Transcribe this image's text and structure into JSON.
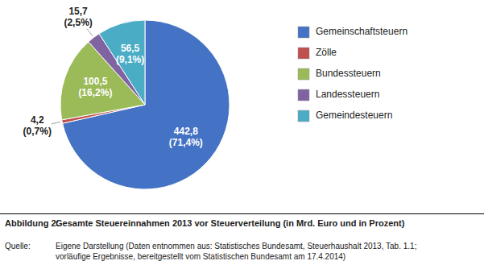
{
  "chart_data": {
    "type": "pie",
    "title_label": "Abbildung 2:",
    "title": "Gesamte Steuereinnahmen 2013 vor Steuerverteilung (in Mrd. Euro und in Prozent)",
    "source_label": "Quelle:",
    "source": "Eigene Darstellung (Daten entnommen aus: Statistisches Bundesamt, Steuerhaushalt 2013, Tab. 1.1;\nvorläufige Ergebnisse, bereitgestellt vom Statistischen Bundesamt am 17.4.2014)",
    "categories": [
      "Gemeinschaftsteuern",
      "Zölle",
      "Bundessteuern",
      "Landessteuern",
      "Gemeindesteuern"
    ],
    "values": [
      442.8,
      4.2,
      100.5,
      15.7,
      56.5
    ],
    "value_labels": [
      "442,8",
      "4,2",
      "100,5",
      "15,7",
      "56,5"
    ],
    "percentages": [
      71.4,
      0.7,
      16.2,
      2.5,
      9.1
    ],
    "percentage_labels": [
      "(71,4%)",
      "(0,7%)",
      "(16,2%)",
      "(2,5%)",
      "(9,1%)"
    ],
    "colors": [
      "#4472C4",
      "#C0504D",
      "#9BBB59",
      "#8064A2",
      "#4BACC6"
    ],
    "data_labels": true,
    "legend": "right"
  }
}
